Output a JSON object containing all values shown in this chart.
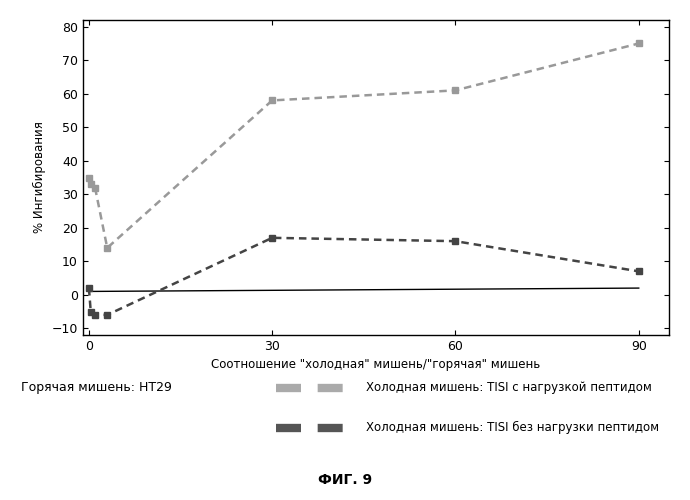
{
  "series1_x": [
    0,
    0.3,
    1,
    3,
    30,
    60,
    90
  ],
  "series1_y": [
    35,
    33,
    32,
    14,
    58,
    61,
    75
  ],
  "series2_x": [
    0,
    0.3,
    1,
    3,
    30,
    60,
    90
  ],
  "series2_y": [
    2,
    -5,
    -6,
    -6,
    17,
    16,
    7
  ],
  "series3_x": [
    0,
    90
  ],
  "series3_y": [
    1,
    2
  ],
  "xlabel": "Соотношение \"холодная\" мишень/\"горячая\" мишень",
  "ylabel": "% Ингибирования",
  "xlim": [
    -1,
    95
  ],
  "ylim": [
    -12,
    82
  ],
  "yticks": [
    -10,
    0,
    10,
    20,
    30,
    40,
    50,
    60,
    70,
    80
  ],
  "xticks": [
    0,
    30,
    60,
    90
  ],
  "legend_hot": "Горячая мишень: НТ29",
  "legend_cold1_label": "Холодная мишень: TISI с нагрузкой пептидом",
  "legend_cold2_label": "Холодная мишень: TISI без нагрузки пептидом",
  "fig_caption": "ФИГ. 9",
  "background_color": "#ffffff",
  "series1_color": "#999999",
  "series2_color": "#444444",
  "series3_color": "#000000",
  "marker_size": 5,
  "swatch_color1": "#aaaaaa",
  "swatch_color2": "#555555"
}
